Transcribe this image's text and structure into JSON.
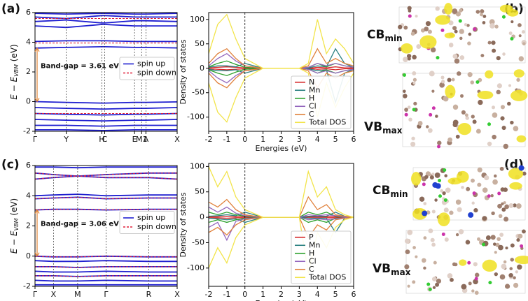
{
  "panel_labels": [
    "(a)",
    "(b)",
    "(c)",
    "(d)"
  ],
  "images": [
    {
      "top": {
        "main": "CB",
        "sub": "min"
      },
      "bottom": {
        "main": "VB",
        "sub": "max"
      }
    },
    {
      "top": {
        "main": "CB",
        "sub": "min"
      },
      "bottom": {
        "main": "VB",
        "sub": "max"
      }
    }
  ],
  "chart_data": [
    {
      "type": "line",
      "ylabel": [
        "E − E",
        "VBM",
        " (eV)"
      ],
      "gap_label": "Band-gap = 3.61 eV",
      "x": [
        0,
        0.22,
        0.47,
        0.49,
        0.7,
        0.75,
        0.78,
        1
      ],
      "xlim": [
        0,
        1
      ],
      "xticks": [
        {
          "value": 0,
          "label": "Γ"
        },
        {
          "value": 0.22,
          "label": "Y"
        },
        {
          "value": 0.47,
          "label": "H"
        },
        {
          "value": 0.49,
          "label": "C"
        },
        {
          "value": 0.7,
          "label": "E"
        },
        {
          "value": 0.75,
          "label": "M1"
        },
        {
          "value": 0.78,
          "label": "A"
        },
        {
          "value": 1,
          "label": "X"
        }
      ],
      "ylim": [
        -2,
        6
      ],
      "yticks": [
        -2,
        0,
        2,
        4,
        6
      ],
      "legend": "center right",
      "series": [
        {
          "name": "spin up",
          "color": "#1f1fd0",
          "dash": false,
          "bands": [
            [
              0,
              -0.05,
              -0.1,
              -0.1,
              -0.05,
              -0.05,
              -0.05,
              -0.02
            ],
            [
              -0.4,
              -0.45,
              -0.5,
              -0.5,
              -0.45,
              -0.45,
              -0.45,
              -0.4
            ],
            [
              -0.8,
              -0.85,
              -0.9,
              -0.9,
              -0.85,
              -0.85,
              -0.85,
              -0.8
            ],
            [
              -1.2,
              -1.25,
              -1.3,
              -1.3,
              -1.25,
              -1.25,
              -1.25,
              -1.2
            ],
            [
              -1.6,
              -1.6,
              -1.65,
              -1.65,
              -1.6,
              -1.6,
              -1.6,
              -1.6
            ],
            [
              -1.9,
              -1.9,
              -1.95,
              -1.95,
              -1.9,
              -1.9,
              -1.9,
              -1.9
            ],
            [
              3.61,
              3.65,
              3.7,
              3.7,
              3.65,
              3.65,
              3.65,
              3.62
            ],
            [
              4.05,
              4.1,
              4.1,
              4.1,
              4.05,
              4.05,
              4.05,
              4.05
            ],
            [
              5.1,
              5,
              5.2,
              5.2,
              5.1,
              5.1,
              5.1,
              5.1
            ],
            [
              5.4,
              5.5,
              5.3,
              5.3,
              5.45,
              5.45,
              5.45,
              5.4
            ],
            [
              5.7,
              5.6,
              5.8,
              5.8,
              5.7,
              5.7,
              5.7,
              5.7
            ],
            [
              5.95,
              5.9,
              5.95,
              5.95,
              5.9,
              5.9,
              5.9,
              5.95
            ]
          ]
        },
        {
          "name": "spin down",
          "color": "#e0203a",
          "dash": true,
          "bands": [
            [
              -0.8,
              -0.8,
              -0.8,
              -0.8,
              -0.8,
              -0.8,
              -0.8,
              -0.8
            ],
            [
              3.95,
              3.95,
              3.95,
              3.95,
              3.95,
              3.95,
              3.95,
              3.95
            ],
            [
              5.6,
              5.6,
              5.6,
              5.6,
              5.6,
              5.6,
              5.6,
              5.6
            ]
          ]
        }
      ]
    },
    {
      "type": "line",
      "ylabel": "Density of states",
      "xlabel": "Energies (eV)",
      "x": [
        -2,
        -1.5,
        -1,
        -0.5,
        0,
        1,
        3,
        3.5,
        4,
        4.5,
        5,
        5.5,
        6
      ],
      "xlim": [
        -2,
        6
      ],
      "xticks": [
        -2,
        -1,
        0,
        1,
        2,
        3,
        4,
        5,
        6
      ],
      "ylim": [
        -129,
        114
      ],
      "yticks": [
        -100,
        -50,
        0,
        50,
        100
      ],
      "vline": 0,
      "legend": "lower right",
      "series": [
        {
          "name": "N",
          "color": "#d62728",
          "values": [
            1,
            2,
            3,
            2,
            1,
            0,
            0,
            0,
            2,
            1,
            3,
            1,
            1
          ],
          "values_down": [
            -1,
            -2,
            -3,
            -2,
            -1,
            0,
            0,
            0,
            -2,
            -1,
            -3,
            -1,
            -1
          ]
        },
        {
          "name": "Mn",
          "color": "#2a8080",
          "values": [
            2,
            5,
            5,
            3,
            10,
            0,
            0,
            1,
            5,
            3,
            40,
            10,
            2
          ],
          "values_down": [
            -2,
            -5,
            -5,
            -3,
            -10,
            0,
            0,
            -1,
            -5,
            -3,
            -70,
            -10,
            -2
          ]
        },
        {
          "name": "H",
          "color": "#2ca02c",
          "values": [
            3,
            10,
            15,
            8,
            2,
            0,
            0,
            2,
            10,
            3,
            10,
            5,
            2
          ],
          "values_down": [
            -3,
            -10,
            -15,
            -8,
            -2,
            0,
            0,
            -2,
            -10,
            -3,
            -10,
            -5,
            -2
          ]
        },
        {
          "name": "Cl",
          "color": "#9467bd",
          "values": [
            5,
            20,
            30,
            15,
            5,
            0,
            0,
            2,
            10,
            5,
            10,
            5,
            2
          ],
          "values_down": [
            -5,
            -20,
            -30,
            -15,
            -5,
            0,
            0,
            -2,
            -10,
            -5,
            -10,
            -5,
            -2
          ]
        },
        {
          "name": "C",
          "color": "#e0803a",
          "values": [
            10,
            30,
            40,
            20,
            5,
            0,
            0,
            5,
            40,
            10,
            20,
            10,
            5
          ],
          "values_down": [
            -10,
            -30,
            -40,
            -20,
            -5,
            0,
            0,
            -5,
            -40,
            -10,
            -20,
            -10,
            -5
          ]
        },
        {
          "name": "Total DOS",
          "color": "#f2e44a",
          "values": [
            30,
            90,
            110,
            60,
            20,
            0,
            0,
            10,
            100,
            30,
            60,
            40,
            10
          ],
          "values_down": [
            -30,
            -90,
            -110,
            -60,
            -20,
            0,
            0,
            -10,
            -100,
            -30,
            -80,
            -40,
            -10
          ]
        }
      ]
    },
    {
      "type": "line",
      "ylabel": [
        "E − E",
        "VBM",
        " (eV)"
      ],
      "gap_label": "Band-gap = 3.06 eV",
      "x": [
        0,
        0.13,
        0.3,
        0.5,
        0.8,
        1
      ],
      "xlim": [
        0,
        1
      ],
      "xticks": [
        {
          "value": 0,
          "label": "Γ"
        },
        {
          "value": 0.13,
          "label": "X"
        },
        {
          "value": 0.3,
          "label": "M"
        },
        {
          "value": 0.5,
          "label": "Γ"
        },
        {
          "value": 0.8,
          "label": "R"
        },
        {
          "value": 1,
          "label": "X"
        }
      ],
      "ylim": [
        -2,
        6
      ],
      "yticks": [
        -2,
        0,
        2,
        4,
        6
      ],
      "legend": "center right",
      "series": [
        {
          "name": "spin up",
          "color": "#1f1fd0",
          "dash": false,
          "bands": [
            [
              0,
              -0.05,
              -0.05,
              0,
              -0.05,
              -0.05
            ],
            [
              -0.3,
              -0.35,
              -0.35,
              -0.3,
              -0.35,
              -0.35
            ],
            [
              -0.7,
              -0.7,
              -0.75,
              -0.7,
              -0.7,
              -0.7
            ],
            [
              -1,
              -1.05,
              -1.05,
              -1,
              -1.05,
              -1.05
            ],
            [
              -1.3,
              -1.3,
              -1.35,
              -1.3,
              -1.3,
              -1.3
            ],
            [
              -1.6,
              -1.65,
              -1.65,
              -1.6,
              -1.65,
              -1.65
            ],
            [
              -1.9,
              -1.9,
              -1.9,
              -1.9,
              -1.9,
              -1.9
            ],
            [
              3.06,
              3.1,
              3.1,
              3.06,
              3.1,
              3.1
            ],
            [
              3.8,
              3.85,
              3.9,
              3.8,
              3.85,
              3.85
            ],
            [
              4,
              4.05,
              4.1,
              4,
              4.05,
              4.05
            ],
            [
              5.1,
              5.2,
              5.3,
              5.2,
              5.2,
              5.1
            ],
            [
              5.5,
              5.4,
              5.3,
              5.4,
              5.5,
              5.5
            ],
            [
              5.9,
              5.9,
              5.85,
              5.9,
              5.9,
              5.9
            ]
          ]
        },
        {
          "name": "spin down",
          "color": "#e0203a",
          "dash": true,
          "bands": [
            [
              0,
              -0.05,
              -0.05,
              0,
              -0.05,
              -0.05
            ],
            [
              -0.7,
              -0.7,
              -0.75,
              -0.7,
              -0.7,
              -0.7
            ],
            [
              -1.3,
              -1.3,
              -1.35,
              -1.3,
              -1.3,
              -1.3
            ],
            [
              3.06,
              3.1,
              3.1,
              3.06,
              3.1,
              3.1
            ],
            [
              3.8,
              3.85,
              3.9,
              3.8,
              3.85,
              3.85
            ],
            [
              5.1,
              5.2,
              5.3,
              5.2,
              5.2,
              5.1
            ],
            [
              5.5,
              5.4,
              5.3,
              5.4,
              5.5,
              5.5
            ]
          ]
        }
      ]
    },
    {
      "type": "line",
      "ylabel": "Density of states",
      "xlabel": "Energies (eV)",
      "x": [
        -2,
        -1.5,
        -1,
        -0.5,
        0,
        1,
        3,
        3.5,
        4,
        4.5,
        5,
        5.5,
        6
      ],
      "xlim": [
        -2,
        6
      ],
      "xticks": [
        -2,
        -1,
        0,
        1,
        2,
        3,
        4,
        5,
        6
      ],
      "ylim": [
        -136,
        106
      ],
      "yticks": [
        -100,
        -50,
        0,
        50,
        100
      ],
      "vline": 0,
      "legend": "lower right",
      "series": [
        {
          "name": "P",
          "color": "#d62728",
          "values": [
            1,
            1,
            2,
            1,
            1,
            0,
            0,
            1,
            1,
            1,
            1,
            0,
            0
          ],
          "values_down": [
            -1,
            -1,
            -2,
            -1,
            -1,
            0,
            0,
            -1,
            -1,
            -1,
            -1,
            0,
            0
          ]
        },
        {
          "name": "Mn",
          "color": "#2a8080",
          "values": [
            2,
            3,
            5,
            3,
            10,
            0,
            0,
            2,
            2,
            2,
            10,
            2,
            0
          ],
          "values_down": [
            -2,
            -3,
            -5,
            -3,
            -10,
            0,
            0,
            -2,
            -2,
            -2,
            -30,
            -2,
            0
          ]
        },
        {
          "name": "H",
          "color": "#2ca02c",
          "values": [
            10,
            5,
            10,
            5,
            2,
            0,
            0,
            10,
            5,
            10,
            2,
            1,
            0
          ],
          "values_down": [
            -10,
            -5,
            -10,
            -5,
            -2,
            0,
            0,
            -10,
            -5,
            -10,
            -2,
            -1,
            0
          ]
        },
        {
          "name": "Cl",
          "color": "#9467bd",
          "values": [
            20,
            10,
            20,
            8,
            3,
            0,
            0,
            5,
            3,
            5,
            3,
            1,
            0
          ],
          "values_down": [
            -20,
            -10,
            -45,
            -8,
            -3,
            0,
            0,
            -5,
            -3,
            -5,
            -3,
            -1,
            0
          ]
        },
        {
          "name": "C",
          "color": "#e0803a",
          "values": [
            30,
            20,
            35,
            15,
            5,
            0,
            0,
            40,
            15,
            25,
            5,
            2,
            0
          ],
          "values_down": [
            -30,
            -20,
            -35,
            -15,
            -5,
            0,
            0,
            -40,
            -15,
            -25,
            -5,
            -2,
            0
          ]
        },
        {
          "name": "Total DOS",
          "color": "#f2e44a",
          "values": [
            100,
            60,
            90,
            40,
            15,
            0,
            0,
            90,
            40,
            60,
            15,
            5,
            0
          ],
          "values_down": [
            -100,
            -60,
            -90,
            -40,
            -15,
            0,
            0,
            -110,
            -30,
            -60,
            -20,
            -5,
            0
          ]
        }
      ]
    }
  ]
}
